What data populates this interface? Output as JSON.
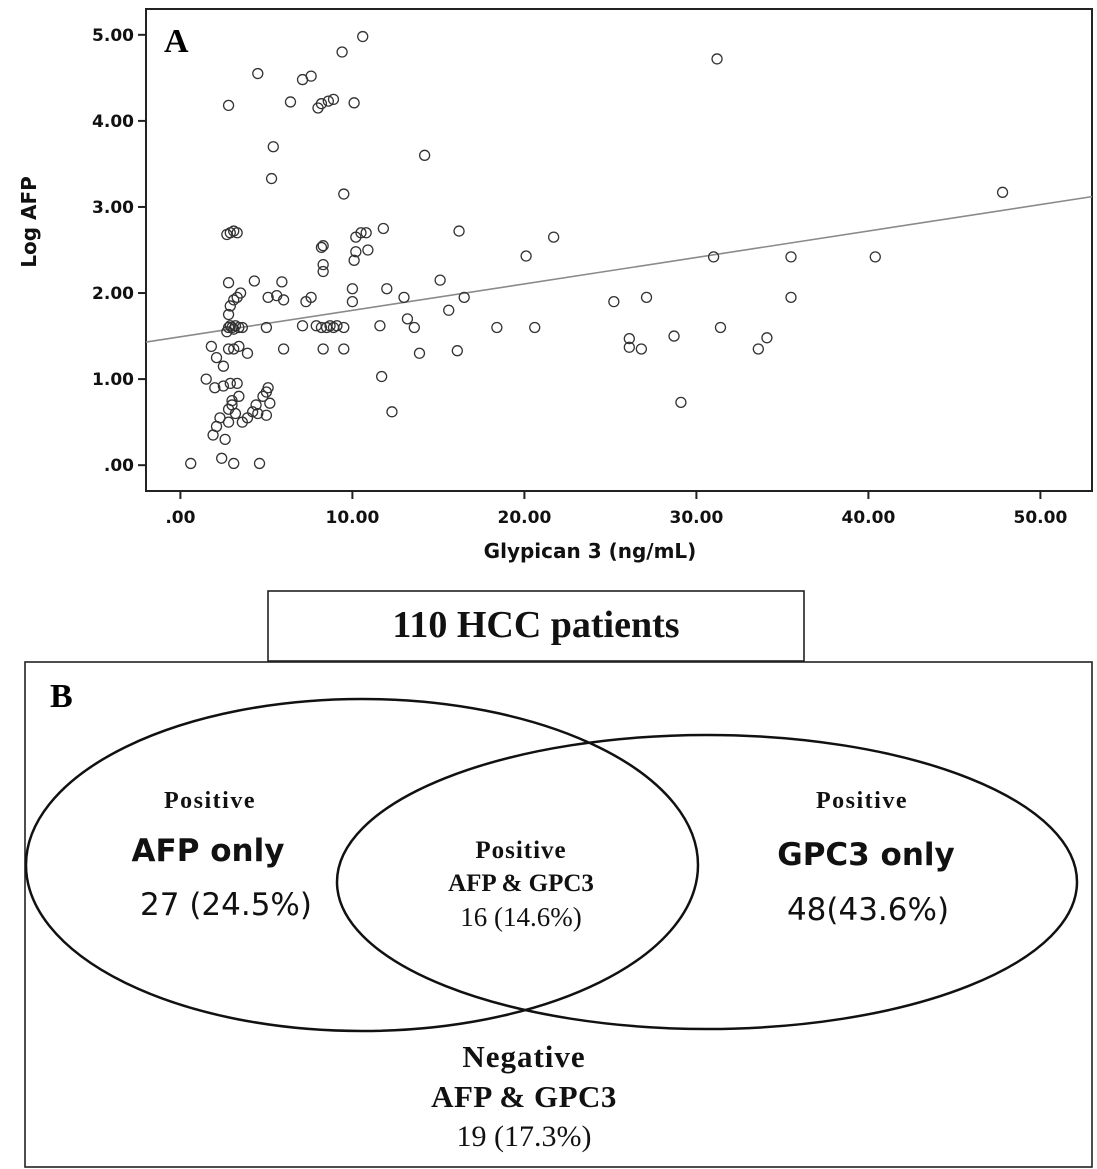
{
  "chart_data": [
    {
      "type": "scatter",
      "panel_label": "A",
      "xlabel": "Glypican 3 (ng/mL)",
      "ylabel": "Log AFP",
      "xlim": [
        -2,
        53
      ],
      "ylim": [
        -0.3,
        5.3
      ],
      "x_ticks": [
        0,
        10,
        20,
        30,
        40,
        50
      ],
      "x_tick_labels": [
        ".00",
        "10.00",
        "20.00",
        "30.00",
        "40.00",
        "50.00"
      ],
      "y_ticks": [
        0,
        1,
        2,
        3,
        4,
        5
      ],
      "y_tick_labels": [
        ".00",
        "1.00",
        "2.00",
        "3.00",
        "4.00",
        "5.00"
      ],
      "grid": false,
      "marker": "open-circle",
      "fit_line": {
        "x": [
          -2,
          53
        ],
        "y": [
          1.43,
          3.12
        ]
      },
      "points": [
        [
          0.6,
          0.02
        ],
        [
          2.4,
          0.08
        ],
        [
          3.1,
          0.02
        ],
        [
          4.6,
          0.02
        ],
        [
          1.5,
          1.0
        ],
        [
          1.9,
          0.35
        ],
        [
          2.1,
          0.45
        ],
        [
          2.3,
          0.55
        ],
        [
          2.6,
          0.3
        ],
        [
          2.8,
          0.5
        ],
        [
          2.8,
          0.65
        ],
        [
          3.0,
          0.7
        ],
        [
          3.0,
          0.75
        ],
        [
          3.2,
          0.6
        ],
        [
          3.4,
          0.8
        ],
        [
          3.6,
          0.5
        ],
        [
          3.9,
          0.55
        ],
        [
          4.2,
          0.62
        ],
        [
          4.4,
          0.7
        ],
        [
          4.5,
          0.6
        ],
        [
          4.8,
          0.8
        ],
        [
          5.0,
          0.58
        ],
        [
          5.0,
          0.85
        ],
        [
          5.2,
          0.72
        ],
        [
          5.1,
          0.9
        ],
        [
          2.0,
          0.9
        ],
        [
          2.5,
          0.92
        ],
        [
          2.9,
          0.95
        ],
        [
          3.3,
          0.95
        ],
        [
          1.8,
          1.38
        ],
        [
          2.1,
          1.25
        ],
        [
          2.5,
          1.15
        ],
        [
          2.8,
          1.35
        ],
        [
          3.1,
          1.35
        ],
        [
          3.4,
          1.38
        ],
        [
          3.9,
          1.3
        ],
        [
          2.7,
          1.55
        ],
        [
          2.8,
          1.6
        ],
        [
          2.9,
          1.62
        ],
        [
          3.0,
          1.6
        ],
        [
          3.1,
          1.58
        ],
        [
          3.2,
          1.62
        ],
        [
          3.4,
          1.6
        ],
        [
          3.6,
          1.6
        ],
        [
          2.8,
          1.75
        ],
        [
          2.9,
          1.85
        ],
        [
          3.1,
          1.92
        ],
        [
          3.3,
          1.95
        ],
        [
          3.5,
          2.0
        ],
        [
          2.8,
          2.12
        ],
        [
          4.3,
          2.14
        ],
        [
          5.9,
          2.13
        ],
        [
          5.1,
          1.95
        ],
        [
          5.6,
          1.97
        ],
        [
          6.0,
          1.92
        ],
        [
          5.0,
          1.6
        ],
        [
          6.0,
          1.35
        ],
        [
          2.7,
          2.68
        ],
        [
          2.9,
          2.7
        ],
        [
          3.1,
          2.72
        ],
        [
          3.3,
          2.7
        ],
        [
          2.8,
          4.18
        ],
        [
          4.5,
          4.55
        ],
        [
          5.4,
          3.7
        ],
        [
          5.3,
          3.33
        ],
        [
          6.4,
          4.22
        ],
        [
          7.1,
          4.48
        ],
        [
          7.6,
          4.52
        ],
        [
          8.0,
          4.15
        ],
        [
          8.2,
          4.2
        ],
        [
          8.6,
          4.23
        ],
        [
          8.9,
          4.25
        ],
        [
          9.4,
          4.8
        ],
        [
          10.1,
          4.21
        ],
        [
          10.6,
          4.98
        ],
        [
          7.1,
          1.62
        ],
        [
          7.3,
          1.9
        ],
        [
          7.6,
          1.95
        ],
        [
          7.9,
          1.62
        ],
        [
          8.2,
          1.6
        ],
        [
          8.3,
          1.35
        ],
        [
          8.5,
          1.6
        ],
        [
          8.7,
          1.62
        ],
        [
          8.9,
          1.6
        ],
        [
          9.1,
          1.62
        ],
        [
          9.5,
          1.6
        ],
        [
          9.5,
          1.35
        ],
        [
          8.3,
          2.25
        ],
        [
          8.3,
          2.33
        ],
        [
          8.2,
          2.53
        ],
        [
          8.3,
          2.55
        ],
        [
          9.5,
          3.15
        ],
        [
          10.0,
          1.9
        ],
        [
          10.0,
          2.05
        ],
        [
          10.1,
          2.38
        ],
        [
          10.2,
          2.48
        ],
        [
          10.2,
          2.65
        ],
        [
          10.5,
          2.7
        ],
        [
          10.9,
          2.5
        ],
        [
          10.8,
          2.7
        ],
        [
          11.6,
          1.62
        ],
        [
          11.7,
          1.03
        ],
        [
          11.8,
          2.75
        ],
        [
          12.0,
          2.05
        ],
        [
          12.3,
          0.62
        ],
        [
          13.0,
          1.95
        ],
        [
          13.2,
          1.7
        ],
        [
          13.6,
          1.6
        ],
        [
          13.9,
          1.3
        ],
        [
          14.2,
          3.6
        ],
        [
          15.1,
          2.15
        ],
        [
          15.6,
          1.8
        ],
        [
          16.1,
          1.33
        ],
        [
          16.2,
          2.72
        ],
        [
          16.5,
          1.95
        ],
        [
          18.4,
          1.6
        ],
        [
          20.1,
          2.43
        ],
        [
          20.6,
          1.6
        ],
        [
          21.7,
          2.65
        ],
        [
          25.2,
          1.9
        ],
        [
          26.1,
          1.47
        ],
        [
          26.1,
          1.37
        ],
        [
          26.8,
          1.35
        ],
        [
          27.1,
          1.95
        ],
        [
          28.7,
          1.5
        ],
        [
          29.1,
          0.73
        ],
        [
          31.0,
          2.42
        ],
        [
          31.2,
          4.72
        ],
        [
          31.4,
          1.6
        ],
        [
          33.6,
          1.35
        ],
        [
          34.1,
          1.48
        ],
        [
          35.5,
          1.95
        ],
        [
          35.5,
          2.42
        ],
        [
          40.4,
          2.42
        ],
        [
          47.8,
          3.17
        ]
      ]
    },
    {
      "type": "venn",
      "panel_label": "B",
      "header": "110 HCC patients",
      "left": {
        "line1": "Positive",
        "line2": "AFP only",
        "value": "27 (24.5%)"
      },
      "intersection": {
        "line1": "Positive",
        "line2": "AFP & GPC3",
        "value": "16 (14.6%)"
      },
      "right": {
        "line1": "Positive",
        "line2": "GPC3 only",
        "value": "48(43.6%)"
      },
      "outside": {
        "line1": "Negative",
        "line2": "AFP & GPC3",
        "value": "19 (17.3%)"
      }
    }
  ]
}
